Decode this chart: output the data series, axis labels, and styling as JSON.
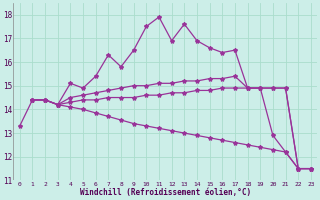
{
  "xlabel": "Windchill (Refroidissement éolien,°C)",
  "background_color": "#cceee8",
  "grid_color": "#aaddcc",
  "line_color": "#993399",
  "x_range": [
    -0.5,
    23.5
  ],
  "y_range": [
    11,
    18.5
  ],
  "yticks": [
    11,
    12,
    13,
    14,
    15,
    16,
    17,
    18
  ],
  "xticks": [
    0,
    1,
    2,
    3,
    4,
    5,
    6,
    7,
    8,
    9,
    10,
    11,
    12,
    13,
    14,
    15,
    16,
    17,
    18,
    19,
    20,
    21,
    22,
    23
  ],
  "s1_x": [
    0,
    1,
    2,
    3,
    4,
    5,
    6,
    7,
    8,
    9,
    10,
    11,
    12,
    13,
    14,
    15,
    16,
    17,
    18,
    19,
    20,
    21,
    22,
    23
  ],
  "s1_y": [
    13.3,
    14.4,
    14.4,
    14.2,
    15.1,
    14.9,
    15.4,
    16.3,
    15.8,
    16.5,
    17.5,
    17.9,
    16.9,
    17.6,
    16.9,
    16.6,
    16.4,
    16.5,
    14.9,
    14.9,
    12.9,
    12.2,
    11.5,
    11.5
  ],
  "s2_x": [
    1,
    2,
    3,
    4,
    5,
    6,
    7,
    8,
    9,
    10,
    11,
    12,
    13,
    14,
    15,
    16,
    17,
    18,
    19,
    20,
    21,
    22,
    23
  ],
  "s2_y": [
    14.4,
    14.4,
    14.2,
    14.5,
    14.6,
    14.7,
    14.8,
    14.9,
    15.0,
    15.0,
    15.1,
    15.1,
    15.2,
    15.2,
    15.3,
    15.3,
    15.4,
    14.9,
    14.9,
    14.9,
    14.9,
    11.5,
    11.5
  ],
  "s3_x": [
    1,
    2,
    3,
    4,
    5,
    6,
    7,
    8,
    9,
    10,
    11,
    12,
    13,
    14,
    15,
    16,
    17,
    18,
    19,
    20,
    21,
    22,
    23
  ],
  "s3_y": [
    14.4,
    14.4,
    14.2,
    14.3,
    14.4,
    14.4,
    14.5,
    14.5,
    14.5,
    14.6,
    14.6,
    14.7,
    14.7,
    14.8,
    14.8,
    14.9,
    14.9,
    14.9,
    14.9,
    14.9,
    14.9,
    11.5,
    11.5
  ],
  "s4_x": [
    1,
    2,
    3,
    4,
    5,
    6,
    7,
    8,
    9,
    10,
    11,
    12,
    13,
    14,
    15,
    16,
    17,
    18,
    19,
    20,
    21,
    22,
    23
  ],
  "s4_y": [
    14.4,
    14.4,
    14.2,
    14.1,
    14.0,
    13.85,
    13.7,
    13.55,
    13.4,
    13.3,
    13.2,
    13.1,
    13.0,
    12.9,
    12.8,
    12.7,
    12.6,
    12.5,
    12.4,
    12.3,
    12.2,
    11.5,
    11.5
  ]
}
